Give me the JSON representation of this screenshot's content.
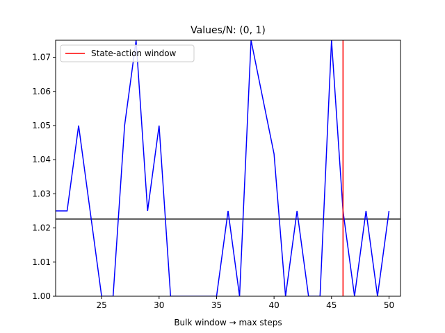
{
  "chart_data": {
    "type": "line",
    "title": "Values/N: (0, 1)",
    "xlabel": "Bulk window → max steps",
    "ylabel": "",
    "xlim": [
      21,
      51
    ],
    "ylim": [
      1.0,
      1.075
    ],
    "xticks": [
      25,
      30,
      35,
      40,
      45,
      50
    ],
    "yticks": [
      1.0,
      1.01,
      1.02,
      1.03,
      1.04,
      1.05,
      1.06,
      1.07
    ],
    "xtick_labels": [
      "25",
      "30",
      "35",
      "40",
      "45",
      "50"
    ],
    "ytick_labels": [
      "1.00",
      "1.01",
      "1.02",
      "1.03",
      "1.04",
      "1.05",
      "1.06",
      "1.07"
    ],
    "grid": false,
    "legend_position": "upper left",
    "series": [
      {
        "color": "#0000ff",
        "x": [
          21,
          22,
          23,
          24,
          25,
          26,
          27,
          28,
          29,
          30,
          31,
          32,
          33,
          34,
          35,
          36,
          37,
          38,
          39,
          40,
          41,
          42,
          43,
          44,
          45,
          46,
          47,
          48,
          49,
          50
        ],
        "y": [
          1.025,
          1.025,
          1.05,
          1.025,
          1.0,
          1.0,
          1.05,
          1.075,
          1.025,
          1.05,
          1.0,
          1.0,
          1.0,
          1.0,
          1.0,
          1.025,
          1.0,
          1.075,
          1.0583,
          1.0417,
          1.0,
          1.025,
          1.0,
          1.0,
          1.075,
          1.025,
          1.0,
          1.025,
          1.0,
          1.025
        ]
      }
    ],
    "hlines": [
      {
        "y": 1.0226,
        "color": "#000000"
      }
    ],
    "vlines": [
      {
        "x": 46,
        "color": "#ff0000",
        "name": "State-action window"
      }
    ]
  }
}
